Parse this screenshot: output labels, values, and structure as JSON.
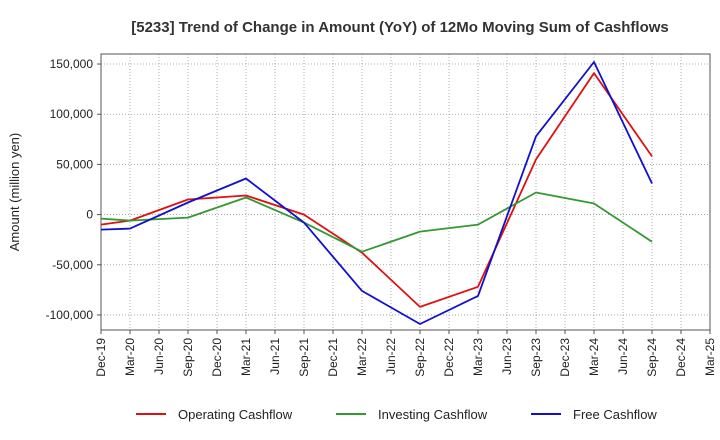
{
  "chart_data": {
    "type": "line",
    "title": "[5233]  Trend of Change in Amount (YoY) of 12Mo Moving Sum of Cashflows",
    "xlabel": "",
    "ylabel": "Amount (million yen)",
    "ylim": [
      -115000,
      160000
    ],
    "yticks": [
      150000,
      100000,
      50000,
      0,
      -50000,
      -100000
    ],
    "ytick_labels": [
      "150,000",
      "100,000",
      "50,000",
      "0",
      "-50,000",
      "-100,000"
    ],
    "categories": [
      "Dec-19",
      "Mar-20",
      "Jun-20",
      "Sep-20",
      "Dec-20",
      "Mar-21",
      "Jun-21",
      "Sep-21",
      "Dec-21",
      "Mar-22",
      "Jun-22",
      "Sep-22",
      "Dec-22",
      "Mar-23",
      "Jun-23",
      "Sep-23",
      "Dec-23",
      "Mar-24",
      "Jun-24",
      "Sep-24",
      "Dec-24",
      "Mar-25"
    ],
    "grid": true,
    "legend_position": "bottom",
    "series": [
      {
        "name": "Operating Cashflow",
        "color": "#dd1111",
        "values": [
          -10000,
          -6000,
          null,
          15000,
          null,
          19000,
          null,
          0,
          null,
          -38000,
          null,
          -92000,
          null,
          -72000,
          null,
          55000,
          null,
          141000,
          null,
          58000,
          null,
          null
        ]
      },
      {
        "name": "Investing Cashflow",
        "color": "#339933",
        "values": [
          -4000,
          -6000,
          null,
          -3000,
          null,
          17000,
          null,
          -8000,
          null,
          -37000,
          null,
          -17000,
          null,
          -10000,
          null,
          22000,
          null,
          11000,
          null,
          -27000,
          null,
          null
        ]
      },
      {
        "name": "Free Cashflow",
        "color": "#1111cc",
        "values": [
          -15000,
          -14000,
          null,
          12000,
          null,
          36000,
          null,
          -8000,
          null,
          -76000,
          null,
          -109000,
          null,
          -81000,
          null,
          78000,
          null,
          152000,
          null,
          31000,
          null,
          null
        ]
      }
    ]
  }
}
